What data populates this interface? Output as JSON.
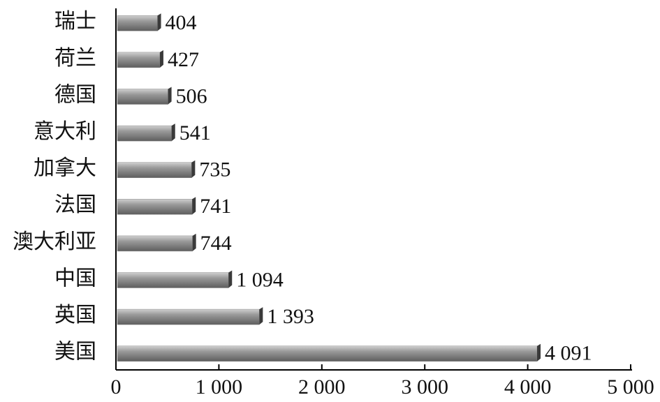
{
  "chart_data": {
    "type": "bar",
    "orientation": "horizontal",
    "categories": [
      "瑞士",
      "荷兰",
      "德国",
      "意大利",
      "加拿大",
      "法国",
      "澳大利亚",
      "中国",
      "英国",
      "美国"
    ],
    "values": [
      404,
      427,
      506,
      541,
      735,
      741,
      744,
      1094,
      1393,
      4091
    ],
    "value_labels": [
      "404",
      "427",
      "506",
      "541",
      "735",
      "741",
      "744",
      "1 094",
      "1 393",
      "4 091"
    ],
    "color": "#8c8c8c",
    "xlim": [
      0,
      5000
    ],
    "xticks": [
      0,
      {
        "value": 1000,
        "label": "1 000"
      },
      {
        "value": 2000,
        "label": "2 000"
      },
      {
        "value": 3000,
        "label": "3 000"
      },
      {
        "value": 4000,
        "label": "4 000"
      },
      {
        "value": 5000,
        "label": "5 000"
      }
    ]
  }
}
